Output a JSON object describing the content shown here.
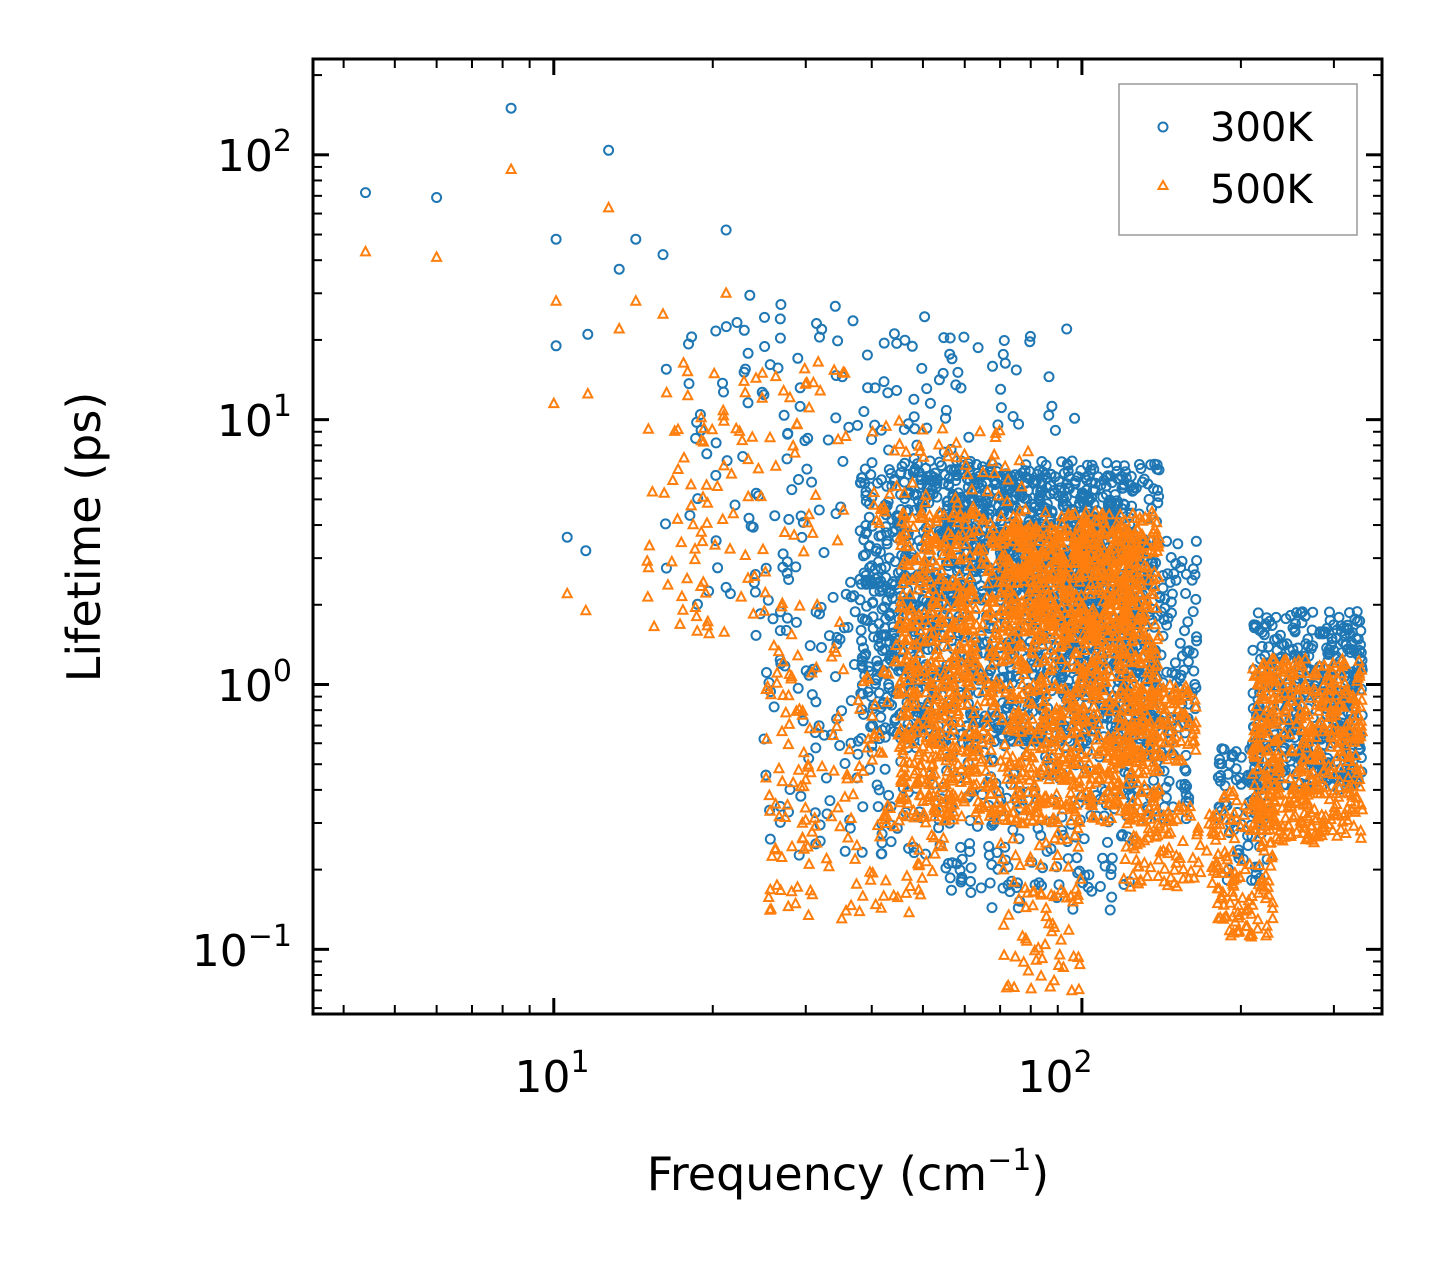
{
  "chart_data": {
    "type": "scatter",
    "xscale": "log",
    "yscale": "log",
    "xlabel": "Frequency (cm",
    "xlabel_sup": "−1",
    "xlabel_end": ")",
    "ylabel": "Lifetime (ps)",
    "xlim": [
      3.5,
      370
    ],
    "ylim": [
      0.057,
      230
    ],
    "x_ticks": [
      {
        "value": 10,
        "base": "10",
        "exp": "1"
      },
      {
        "value": 100,
        "base": "10",
        "exp": "2"
      }
    ],
    "y_ticks": [
      {
        "value": 0.1,
        "base": "10",
        "exp": "−1"
      },
      {
        "value": 1,
        "base": "10",
        "exp": "0"
      },
      {
        "value": 10,
        "base": "10",
        "exp": "1"
      },
      {
        "value": 100,
        "base": "10",
        "exp": "2"
      }
    ],
    "legend_position": "top-right",
    "series": [
      {
        "name": "300K",
        "marker": "circle",
        "color": "#1f77b4",
        "clusters": [
          {
            "f": [
              4.4,
              4.4
            ],
            "t": [
              72,
              72
            ],
            "n": 1
          },
          {
            "f": [
              6.0,
              6.0
            ],
            "t": [
              69,
              69
            ],
            "n": 1
          },
          {
            "f": [
              8.3,
              8.3
            ],
            "t": [
              150,
              150
            ],
            "n": 1
          },
          {
            "f": [
              12.7,
              12.7
            ],
            "t": [
              104,
              104
            ],
            "n": 1
          },
          {
            "f": [
              10.1,
              10.1
            ],
            "t": [
              48,
              48
            ],
            "n": 1
          },
          {
            "f": [
              14.3,
              14.3
            ],
            "t": [
              48,
              48
            ],
            "n": 1
          },
          {
            "f": [
              13.3,
              13.3
            ],
            "t": [
              37,
              37
            ],
            "n": 1
          },
          {
            "f": [
              16.1,
              16.1
            ],
            "t": [
              42,
              42
            ],
            "n": 1
          },
          {
            "f": [
              21.2,
              21.2
            ],
            "t": [
              52,
              52
            ],
            "n": 1
          },
          {
            "f": [
              10.1,
              10.1
            ],
            "t": [
              19,
              19
            ],
            "n": 1
          },
          {
            "f": [
              11.6,
              11.6
            ],
            "t": [
              21,
              21
            ],
            "n": 1
          },
          {
            "f": [
              10.6,
              10.6
            ],
            "t": [
              3.6,
              3.6
            ],
            "n": 1
          },
          {
            "f": [
              11.5,
              11.5
            ],
            "t": [
              3.2,
              3.2
            ],
            "n": 1
          },
          {
            "f": [
              16,
              60
            ],
            "t": [
              1.5,
              30
            ],
            "n": 160
          },
          {
            "f": [
              16,
              36
            ],
            "t": [
              2.2,
              3.3
            ],
            "n": 6
          },
          {
            "f": [
              25,
              55
            ],
            "t": [
              0.22,
              2.2
            ],
            "n": 160
          },
          {
            "f": [
              38,
              140
            ],
            "t": [
              0.6,
              7
            ],
            "n": 1200
          },
          {
            "f": [
              55,
              120
            ],
            "t": [
              2.0,
              6.5
            ],
            "n": 450
          },
          {
            "f": [
              40,
              100
            ],
            "t": [
              6,
              22
            ],
            "n": 40
          },
          {
            "f": [
              55,
              125
            ],
            "t": [
              0.14,
              0.7
            ],
            "n": 180
          },
          {
            "f": [
              90,
              165
            ],
            "t": [
              0.7,
              3.5
            ],
            "n": 300
          },
          {
            "f": [
              120,
              160
            ],
            "t": [
              0.3,
              0.85
            ],
            "n": 80
          },
          {
            "f": [
              180,
              230
            ],
            "t": [
              0.18,
              0.6
            ],
            "n": 80
          },
          {
            "f": [
              210,
              340
            ],
            "t": [
              0.4,
              1.9
            ],
            "n": 450
          }
        ]
      },
      {
        "name": "500K",
        "marker": "triangle",
        "color": "#ff7f0e",
        "clusters": [
          {
            "f": [
              4.4,
              4.4
            ],
            "t": [
              43,
              43
            ],
            "n": 1
          },
          {
            "f": [
              6.0,
              6.0
            ],
            "t": [
              41,
              41
            ],
            "n": 1
          },
          {
            "f": [
              8.3,
              8.3
            ],
            "t": [
              88,
              88
            ],
            "n": 1
          },
          {
            "f": [
              12.7,
              12.7
            ],
            "t": [
              63,
              63
            ],
            "n": 1
          },
          {
            "f": [
              10.1,
              10.1
            ],
            "t": [
              28,
              28
            ],
            "n": 1
          },
          {
            "f": [
              14.3,
              14.3
            ],
            "t": [
              28,
              28
            ],
            "n": 1
          },
          {
            "f": [
              13.3,
              13.3
            ],
            "t": [
              22,
              22
            ],
            "n": 1
          },
          {
            "f": [
              16.1,
              16.1
            ],
            "t": [
              25,
              25
            ],
            "n": 1
          },
          {
            "f": [
              21.2,
              21.2
            ],
            "t": [
              30,
              30
            ],
            "n": 1
          },
          {
            "f": [
              10.0,
              10.0
            ],
            "t": [
              11.5,
              11.5
            ],
            "n": 1
          },
          {
            "f": [
              11.6,
              11.6
            ],
            "t": [
              12.5,
              12.5
            ],
            "n": 1
          },
          {
            "f": [
              10.6,
              10.6
            ],
            "t": [
              2.2,
              2.2
            ],
            "n": 1
          },
          {
            "f": [
              11.5,
              11.5
            ],
            "t": [
              1.9,
              1.9
            ],
            "n": 1
          },
          {
            "f": [
              15,
              36
            ],
            "t": [
              1.5,
              17
            ],
            "n": 120
          },
          {
            "f": [
              25,
              55
            ],
            "t": [
              0.13,
              1.5
            ],
            "n": 200
          },
          {
            "f": [
              45,
              140
            ],
            "t": [
              0.3,
              4.5
            ],
            "n": 1600
          },
          {
            "f": [
              70,
              130
            ],
            "t": [
              1.5,
              4.0
            ],
            "n": 300
          },
          {
            "f": [
              40,
              80
            ],
            "t": [
              4,
              10
            ],
            "n": 60
          },
          {
            "f": [
              70,
              100
            ],
            "t": [
              0.065,
              0.3
            ],
            "n": 80
          },
          {
            "f": [
              120,
              165
            ],
            "t": [
              0.5,
              1.0
            ],
            "n": 120
          },
          {
            "f": [
              120,
              180
            ],
            "t": [
              0.17,
              0.35
            ],
            "n": 100
          },
          {
            "f": [
              180,
              230
            ],
            "t": [
              0.11,
              0.4
            ],
            "n": 120
          },
          {
            "f": [
              210,
              340
            ],
            "t": [
              0.25,
              1.25
            ],
            "n": 500
          }
        ]
      }
    ]
  }
}
